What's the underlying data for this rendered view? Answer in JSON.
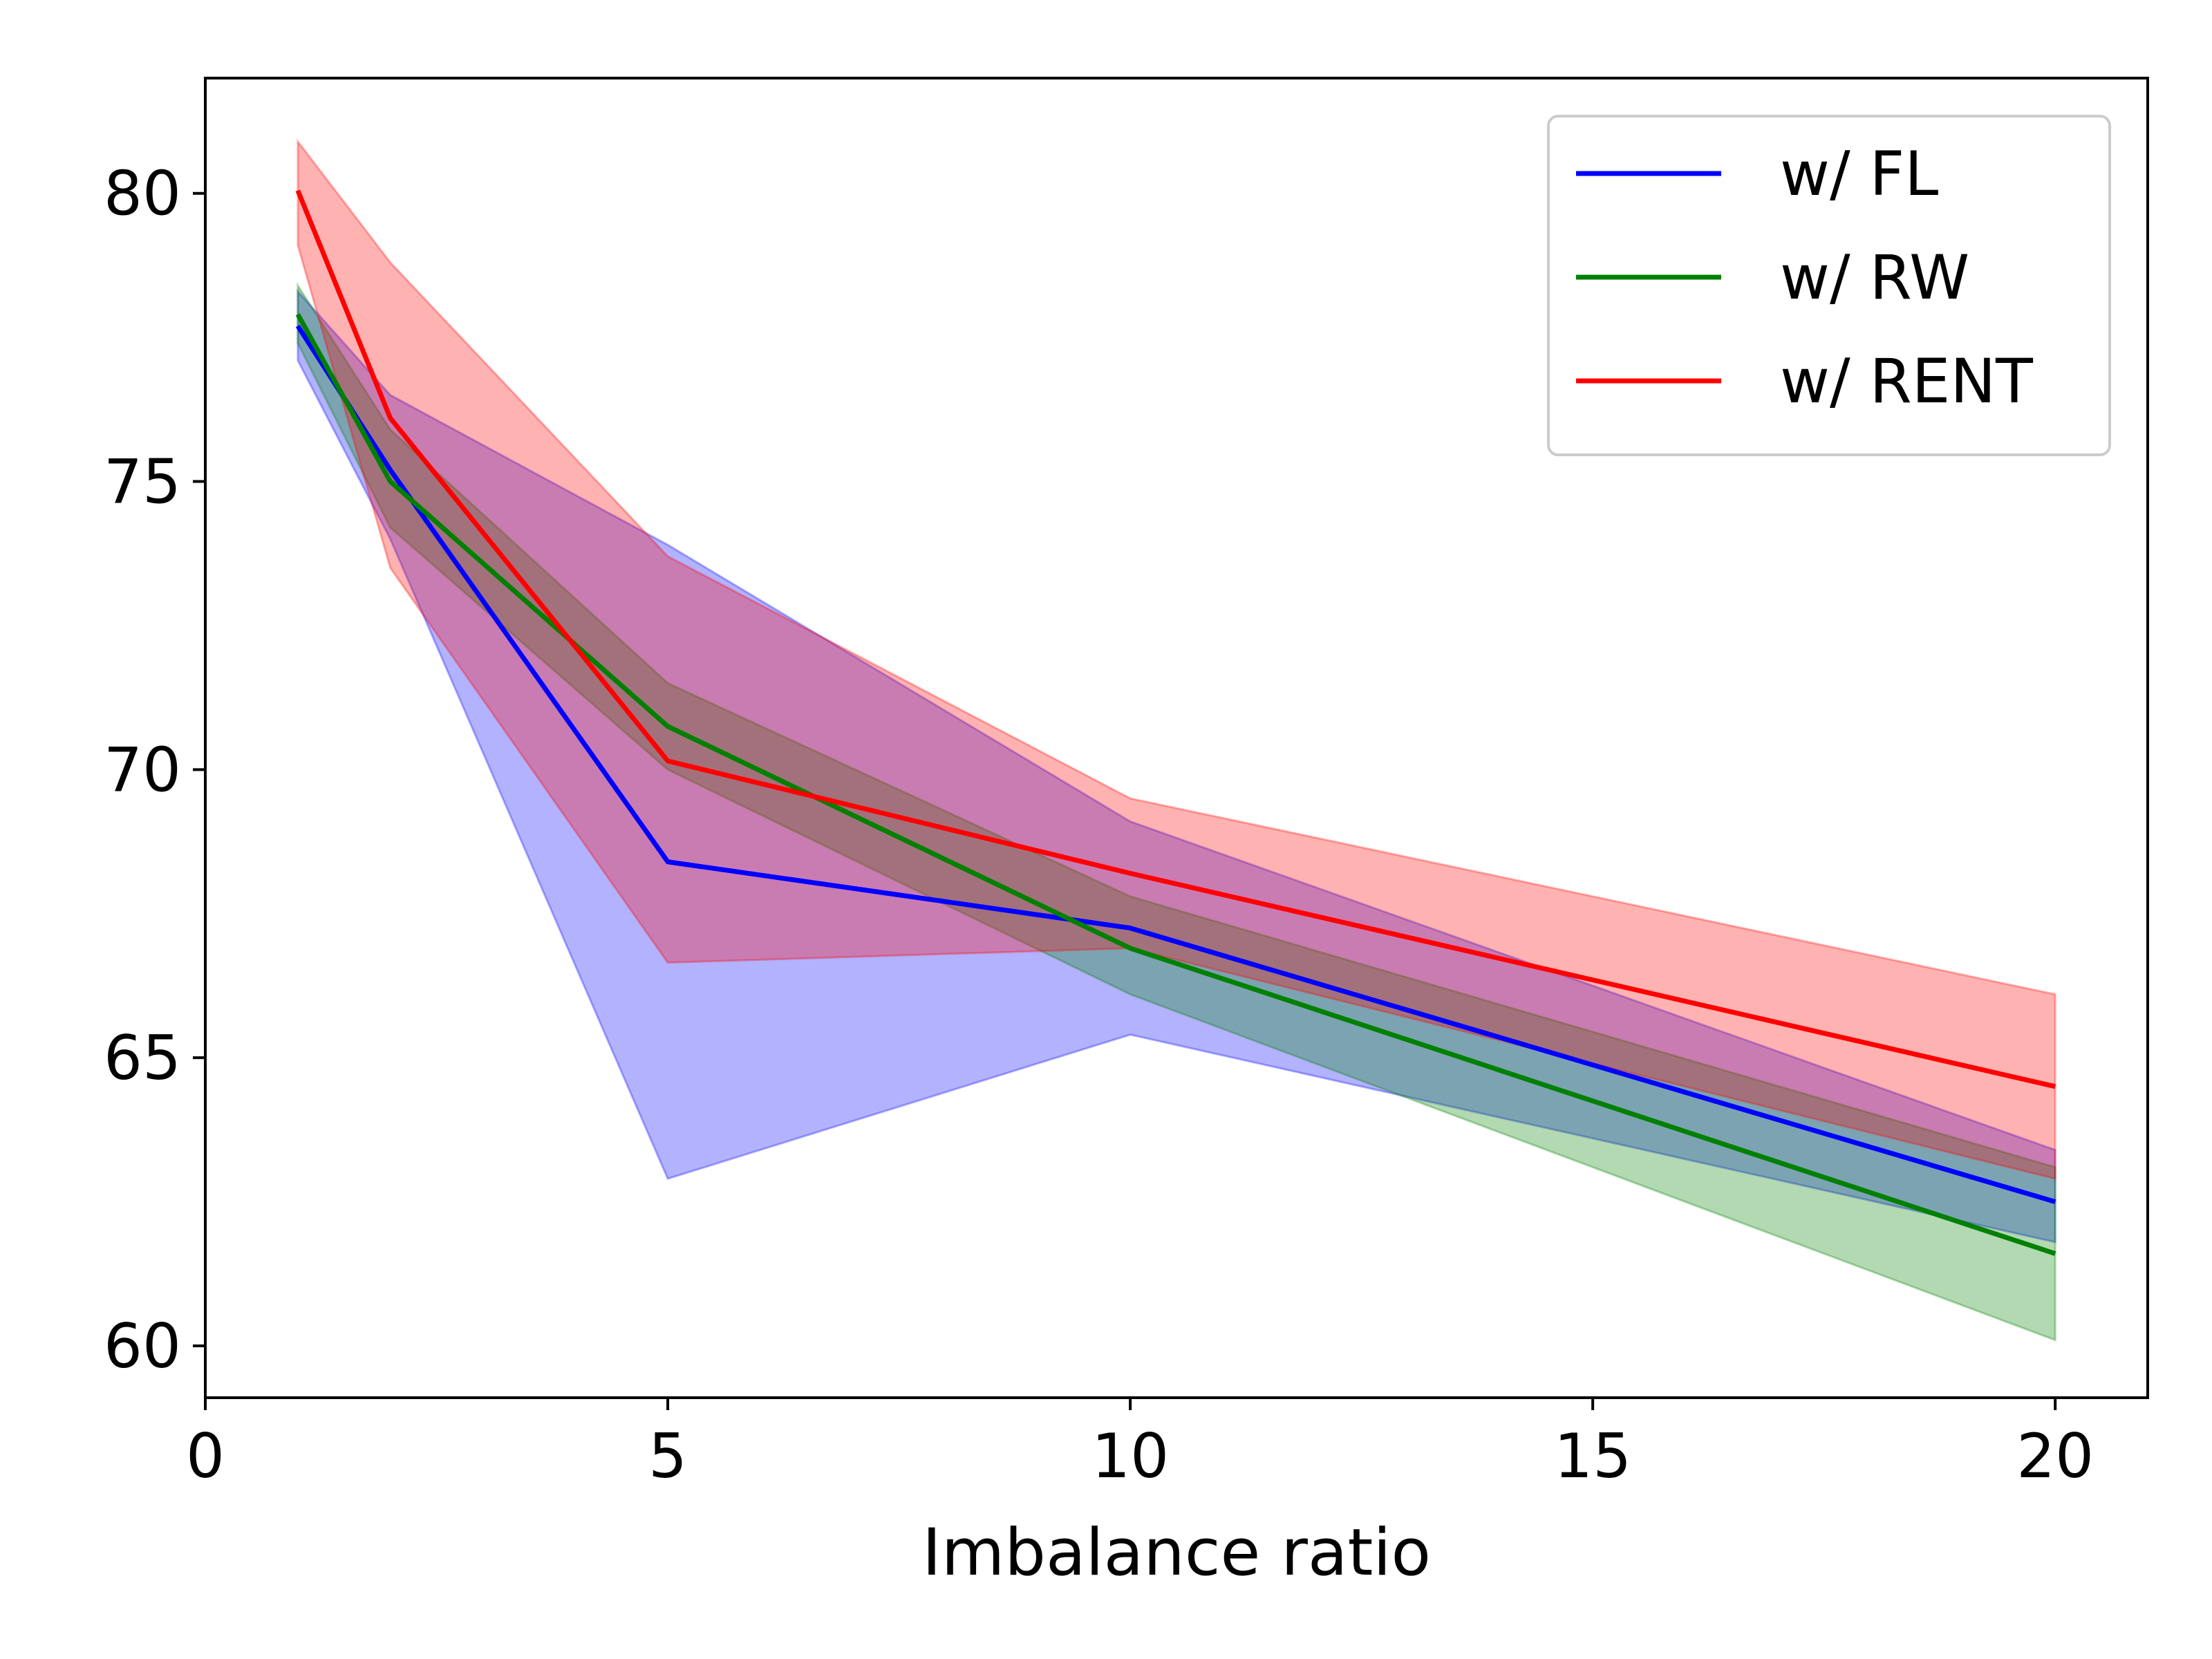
{
  "chart_data": {
    "type": "line",
    "title": "",
    "xlabel": "Imbalance ratio",
    "ylabel": "",
    "xlim": [
      0,
      21
    ],
    "ylim": [
      59.1,
      82
    ],
    "xticks": [
      0,
      5,
      10,
      15,
      20
    ],
    "yticks": [
      60,
      65,
      70,
      75,
      80
    ],
    "x": [
      1,
      2,
      5,
      10,
      20
    ],
    "grid": false,
    "legend_position": "top-right",
    "series": [
      {
        "name": "w/ FL",
        "color": "#0000ff",
        "values": [
          77.7,
          75.2,
          68.4,
          67.25,
          62.5
        ],
        "lower": [
          77.1,
          74.0,
          62.9,
          65.4,
          61.8
        ],
        "upper": [
          78.3,
          76.5,
          73.9,
          69.1,
          63.4
        ]
      },
      {
        "name": "w/ RW",
        "color": "#008000",
        "values": [
          77.9,
          75.0,
          70.75,
          66.9,
          61.6
        ],
        "lower": [
          77.4,
          74.2,
          70.0,
          66.1,
          60.1
        ],
        "upper": [
          78.4,
          75.9,
          71.5,
          67.8,
          63.1
        ]
      },
      {
        "name": "w/ RENT",
        "color": "#ff0000",
        "values": [
          80.05,
          76.1,
          70.15,
          68.2,
          64.5
        ],
        "lower": [
          79.1,
          73.5,
          66.65,
          66.9,
          62.9
        ],
        "upper": [
          80.9,
          78.8,
          73.7,
          69.5,
          66.1
        ]
      }
    ]
  }
}
